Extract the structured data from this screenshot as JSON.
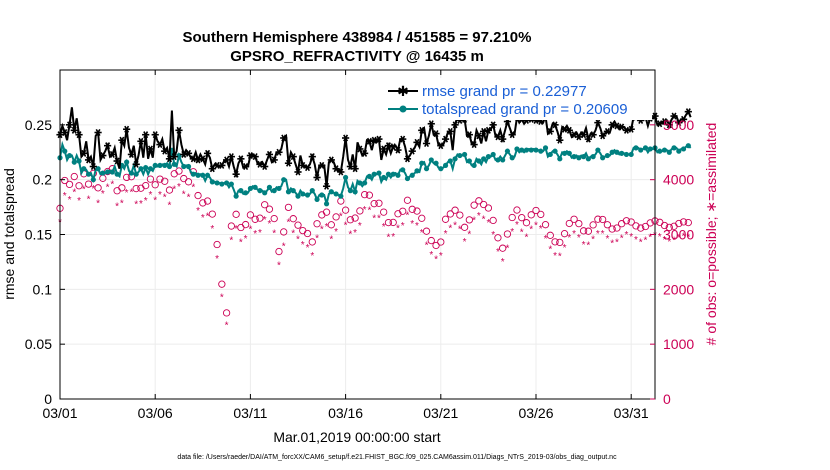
{
  "chart_data": {
    "type": "line",
    "title_line1": "Southern Hemisphere 438984 / 451585 = 97.210%",
    "title_line2": "GPSRO_REFRACTIVITY @ 16435 m",
    "ylabel_left": "rmse and totalspread",
    "ylabel_right": "# of obs: o=possible; ∗=assimilated",
    "xlabel": "Mar.01,2019 00:00:00 start",
    "footer": "data file: /Users/raeder/DAI/ATM_forcXX/CAM6_setup/f.e21.FHIST_BGC.f09_025.CAM6assim.011/Diags_NTrS_2019-03/obs_diag_output.nc",
    "x_ticks": [
      "03/01",
      "03/06",
      "03/11",
      "03/16",
      "03/21",
      "03/26",
      "03/31"
    ],
    "x_tick_days": [
      0,
      5,
      10,
      15,
      20,
      25,
      30
    ],
    "xlim": [
      0,
      31.25
    ],
    "ylim_left": [
      0,
      0.3
    ],
    "y_ticks_left": [
      "0",
      "0.05",
      "0.1",
      "0.15",
      "0.2",
      "0.25"
    ],
    "y_tick_values_left": [
      0,
      0.05,
      0.1,
      0.15,
      0.2,
      0.25
    ],
    "ylim_right": [
      0,
      6000
    ],
    "y_ticks_right": [
      "0",
      "1000",
      "2000",
      "3000",
      "4000",
      "5000"
    ],
    "y_tick_values_right": [
      0,
      1000,
      2000,
      3000,
      4000,
      5000
    ],
    "legend": [
      {
        "name": "rmse grand pr = 0.22977",
        "color": "#000000"
      },
      {
        "name": "totalspread grand pr = 0.20609",
        "color": "#008080"
      }
    ],
    "series": [
      {
        "name": "rmse",
        "color": "#000000",
        "values": [
          0.241,
          0.249,
          0.243,
          0.236,
          0.25,
          0.266,
          0.245,
          0.256,
          0.241,
          0.221,
          0.224,
          0.235,
          0.218,
          0.221,
          0.212,
          0.24,
          0.243,
          0.218,
          0.222,
          0.226,
          0.231,
          0.221,
          0.223,
          0.229,
          0.217,
          0.21,
          0.236,
          0.231,
          0.246,
          0.229,
          0.223,
          0.231,
          0.214,
          0.222,
          0.235,
          0.22,
          0.241,
          0.219,
          0.228,
          0.22,
          0.241,
          0.235,
          0.232,
          0.237,
          0.226,
          0.229,
          0.219,
          0.263,
          0.221,
          0.226,
          0.245,
          0.232,
          0.223,
          0.227,
          0.224,
          0.22,
          0.219,
          0.225,
          0.218,
          0.223,
          0.219,
          0.214,
          0.224,
          0.22,
          0.21,
          0.214,
          0.213,
          0.212,
          0.213,
          0.217,
          0.218,
          0.212,
          0.221,
          0.212,
          0.205,
          0.215,
          0.219,
          0.211,
          0.212,
          0.212,
          0.222,
          0.223,
          0.221,
          0.215,
          0.214,
          0.216,
          0.212,
          0.218,
          0.223,
          0.216,
          0.218,
          0.225,
          0.225,
          0.228,
          0.238,
          0.24,
          0.215,
          0.225,
          0.221,
          0.214,
          0.207,
          0.222,
          0.213,
          0.212,
          0.211,
          0.214,
          0.221,
          0.214,
          0.202,
          0.213,
          0.213,
          0.213,
          0.194,
          0.216,
          0.218,
          0.216,
          0.21,
          0.208,
          0.207,
          0.221,
          0.238,
          0.218,
          0.212,
          0.223,
          0.21,
          0.234,
          0.228,
          0.222,
          0.224,
          0.236,
          0.235,
          0.227,
          0.236,
          0.234,
          0.237,
          0.218,
          0.228,
          0.223,
          0.231,
          0.224,
          0.23,
          0.231,
          0.227,
          0.237,
          0.237,
          0.23,
          0.219,
          0.222,
          0.226,
          0.229,
          0.234,
          0.23,
          0.245,
          0.247,
          0.233,
          0.24,
          0.251,
          0.241,
          0.242,
          0.232,
          0.231,
          0.232,
          0.237,
          0.243,
          0.244,
          0.227,
          0.25,
          0.258,
          0.254,
          0.255,
          0.255,
          0.24,
          0.241,
          0.233,
          0.232,
          0.245,
          0.24,
          0.233,
          0.244,
          0.235,
          0.245,
          0.246,
          0.25,
          0.24,
          0.239,
          0.245,
          0.237,
          0.245,
          0.253,
          0.247,
          0.241,
          0.242,
          0.257,
          0.252,
          0.255,
          0.251,
          0.254,
          0.256,
          0.255,
          0.255,
          0.254,
          0.255,
          0.253,
          0.252,
          0.258,
          0.242,
          0.244,
          0.251,
          0.25,
          0.244,
          0.236,
          0.248,
          0.246,
          0.249,
          0.245,
          0.239,
          0.241,
          0.243,
          0.239,
          0.243,
          0.241,
          0.247,
          0.237,
          0.242,
          0.241,
          0.245,
          0.252,
          0.247,
          0.24,
          0.242,
          0.244,
          0.243,
          0.25,
          0.253,
          0.249,
          0.246,
          0.248,
          0.248,
          0.245,
          0.245,
          0.246,
          0.257,
          0.257,
          0.257,
          0.254,
          0.255,
          0.257,
          0.249,
          0.256,
          0.256,
          0.258,
          0.25,
          0.251,
          0.252,
          0.253,
          0.254,
          0.25,
          0.255,
          0.258,
          0.258,
          0.252,
          0.255,
          0.255,
          0.259,
          0.262,
          0.257
        ]
      },
      {
        "name": "totalspread",
        "color": "#008080",
        "values": [
          0.22,
          0.232,
          0.226,
          0.218,
          0.222,
          0.222,
          0.216,
          0.222,
          0.217,
          0.206,
          0.21,
          0.209,
          0.205,
          0.206,
          0.2,
          0.209,
          0.21,
          0.205,
          0.206,
          0.206,
          0.207,
          0.208,
          0.207,
          0.212,
          0.205,
          0.203,
          0.213,
          0.21,
          0.216,
          0.208,
          0.206,
          0.213,
          0.205,
          0.207,
          0.21,
          0.205,
          0.211,
          0.205,
          0.21,
          0.208,
          0.213,
          0.212,
          0.213,
          0.214,
          0.213,
          0.215,
          0.212,
          0.229,
          0.214,
          0.212,
          0.222,
          0.216,
          0.212,
          0.213,
          0.212,
          0.207,
          0.205,
          0.206,
          0.204,
          0.205,
          0.204,
          0.199,
          0.204,
          0.202,
          0.198,
          0.198,
          0.197,
          0.197,
          0.196,
          0.197,
          0.197,
          0.193,
          0.196,
          0.191,
          0.185,
          0.19,
          0.19,
          0.187,
          0.188,
          0.188,
          0.192,
          0.194,
          0.193,
          0.191,
          0.19,
          0.19,
          0.188,
          0.19,
          0.193,
          0.189,
          0.19,
          0.193,
          0.192,
          0.194,
          0.2,
          0.2,
          0.189,
          0.192,
          0.19,
          0.188,
          0.185,
          0.19,
          0.187,
          0.186,
          0.186,
          0.187,
          0.19,
          0.187,
          0.182,
          0.186,
          0.186,
          0.186,
          0.178,
          0.187,
          0.189,
          0.188,
          0.187,
          0.186,
          0.185,
          0.192,
          0.202,
          0.193,
          0.19,
          0.196,
          0.189,
          0.199,
          0.197,
          0.194,
          0.197,
          0.203,
          0.203,
          0.2,
          0.205,
          0.205,
          0.206,
          0.198,
          0.202,
          0.2,
          0.205,
          0.202,
          0.205,
          0.206,
          0.204,
          0.209,
          0.209,
          0.206,
          0.201,
          0.203,
          0.204,
          0.206,
          0.208,
          0.207,
          0.215,
          0.216,
          0.21,
          0.213,
          0.218,
          0.215,
          0.215,
          0.211,
          0.21,
          0.211,
          0.213,
          0.216,
          0.217,
          0.21,
          0.219,
          0.223,
          0.222,
          0.222,
          0.223,
          0.216,
          0.217,
          0.213,
          0.213,
          0.219,
          0.217,
          0.214,
          0.219,
          0.216,
          0.221,
          0.221,
          0.223,
          0.218,
          0.218,
          0.221,
          0.218,
          0.222,
          0.226,
          0.223,
          0.22,
          0.221,
          0.228,
          0.225,
          0.227,
          0.225,
          0.227,
          0.228,
          0.227,
          0.228,
          0.227,
          0.227,
          0.226,
          0.226,
          0.229,
          0.221,
          0.223,
          0.226,
          0.226,
          0.223,
          0.219,
          0.225,
          0.224,
          0.226,
          0.224,
          0.22,
          0.221,
          0.222,
          0.22,
          0.222,
          0.221,
          0.224,
          0.219,
          0.221,
          0.221,
          0.223,
          0.227,
          0.224,
          0.22,
          0.221,
          0.222,
          0.222,
          0.225,
          0.227,
          0.225,
          0.223,
          0.224,
          0.224,
          0.223,
          0.223,
          0.223,
          0.229,
          0.229,
          0.229,
          0.227,
          0.228,
          0.229,
          0.225,
          0.228,
          0.228,
          0.229,
          0.225,
          0.226,
          0.226,
          0.227,
          0.227,
          0.225,
          0.228,
          0.229,
          0.229,
          0.226,
          0.228,
          0.228,
          0.23,
          0.231,
          0.229
        ]
      },
      {
        "name": "possible",
        "color": "#cc0055",
        "values": [
          3478,
          3310,
          3985,
          3872,
          3914,
          3950,
          4057,
          3750,
          3889,
          3994,
          4107,
          4068,
          3919,
          3990,
          4115,
          4074,
          3851,
          4013,
          4025,
          3935,
          4148,
          4040,
          4200,
          3882,
          3798,
          3958,
          3851,
          4000,
          4042,
          3946,
          4054,
          4059,
          3837,
          3913,
          3844,
          3915,
          3892,
          3960,
          4010,
          4073,
          3907,
          4062,
          4010,
          3952,
          3971,
          3824,
          3810,
          4081,
          4107,
          4096,
          4157,
          4085,
          4020,
          4113,
          3961,
          4098,
          4145,
          3954,
          3710,
          3689,
          3576,
          3559,
          3610,
          3447,
          3372,
          3175,
          2817,
          2590,
          2094,
          1859,
          1570,
          3077,
          3154,
          3280,
          3368,
          3287,
          3127,
          3061,
          3181,
          3245,
          3357,
          3193,
          3277,
          3360,
          3298,
          3421,
          3543,
          3590,
          3462,
          3395,
          3290,
          3239,
          2689,
          2969,
          3047,
          3203,
          3495,
          3474,
          3288,
          3013,
          3170,
          3265,
          3071,
          2975,
          3018,
          2978,
          2864,
          3160,
          3196,
          3287,
          3357,
          3400,
          3407,
          3313,
          3177,
          3241,
          3321,
          3465,
          3610,
          3597,
          3444,
          3326,
          3269,
          3222,
          3300,
          3398,
          3430,
          3581,
          3727,
          3728,
          3717,
          3685,
          3562,
          3543,
          3570,
          3451,
          3408,
          3304,
          3217,
          3154,
          3220,
          3390,
          3378,
          3448,
          3424,
          3541,
          3624,
          3552,
          3459,
          3448,
          3427,
          3376,
          3296,
          3193,
          3060,
          2969,
          2889,
          2826,
          2800,
          2756,
          2863,
          3051,
          3277,
          3345,
          3375,
          3346,
          3443,
          3428,
          3354,
          3213,
          3131,
          3169,
          3267,
          3398,
          3535,
          3610,
          3614,
          3591,
          3547,
          3519,
          3483,
          3395,
          3257,
          3106,
          2940,
          2795,
          2750,
          2844,
          3009,
          3202,
          3310,
          3430,
          3446,
          3392,
          3307,
          3231,
          3215,
          3266,
          3359,
          3424,
          3438,
          3420,
          3366,
          3281,
          3179,
          3074,
          2985,
          2912,
          2866,
          2835,
          2856,
          2925,
          3015,
          3114,
          3201,
          3262,
          3278,
          3255,
          3198,
          3125,
          3067,
          3043,
          3060,
          3110,
          3175,
          3237,
          3279,
          3292,
          3274,
          3231,
          3178,
          3130,
          3100,
          3097,
          3118,
          3156,
          3197,
          3232,
          3251,
          3250,
          3228,
          3194,
          3157,
          3129,
          3117,
          3124,
          3146,
          3178,
          3211,
          3236,
          3247,
          3242,
          3222,
          3193,
          3164,
          3140,
          3130,
          3134,
          3150,
          3175,
          3200,
          3220,
          3230,
          3229,
          3217,
          0
        ]
      },
      {
        "name": "assimilated",
        "color": "#cc0055",
        "values": [
          3400,
          3260,
          3880,
          3770,
          3810,
          3850,
          3950,
          3660,
          3790,
          3890,
          4000,
          3960,
          3820,
          3880,
          4010,
          3970,
          3750,
          3900,
          3920,
          3830,
          4040,
          3930,
          4090,
          3780,
          3690,
          3850,
          3750,
          3890,
          3940,
          3840,
          3950,
          3950,
          3730,
          3810,
          3740,
          3810,
          3790,
          3850,
          3900,
          3960,
          3800,
          3950,
          3900,
          3850,
          3860,
          3720,
          3710,
          3970,
          4000,
          3990,
          4050,
          3980,
          3910,
          4000,
          3860,
          3990,
          4040,
          3850,
          3610,
          3590,
          3480,
          3460,
          3510,
          3350,
          3280,
          3090,
          2740,
          2520,
          2030,
          1800,
          1520,
          2990,
          3070,
          3190,
          3280,
          3200,
          3040,
          2980,
          3100,
          3160,
          3270,
          3110,
          3190,
          3270,
          3210,
          3330,
          3450,
          3490,
          3370,
          3300,
          3200,
          3150,
          2620,
          2890,
          2960,
          3120,
          3400,
          3380,
          3200,
          2930,
          3090,
          3180,
          2990,
          2900,
          2940,
          2900,
          2790,
          3080,
          3110,
          3200,
          3270,
          3310,
          3320,
          3230,
          3090,
          3160,
          3230,
          3370,
          3510,
          3500,
          3350,
          3240,
          3180,
          3140,
          3210,
          3310,
          3340,
          3490,
          3630,
          3630,
          3620,
          3590,
          3470,
          3450,
          3470,
          3360,
          3320,
          3220,
          3130,
          3070,
          3140,
          3300,
          3290,
          3360,
          3340,
          3450,
          3530,
          3460,
          3370,
          3360,
          3340,
          3290,
          3210,
          3110,
          2980,
          2890,
          2810,
          2750,
          2730,
          2680,
          2790,
          2970,
          3190,
          3260,
          3290,
          3260,
          3350,
          3340,
          3270,
          3130,
          3050,
          3090,
          3180,
          3310,
          3440,
          3520,
          3520,
          3500,
          3460,
          3430,
          3390,
          3310,
          3170,
          3030,
          2860,
          2720,
          2680,
          2770,
          2930,
          3120,
          3230,
          3340,
          3360,
          3300,
          3220,
          3150,
          3130,
          3180,
          3270,
          3340,
          3350,
          3330,
          3280,
          3200,
          3100,
          2990,
          2910,
          2840,
          2790,
          2760,
          2780,
          2850,
          2940,
          3030,
          3120,
          3180,
          3190,
          3170,
          3120,
          3040,
          2990,
          2960,
          2980,
          3030,
          3090,
          3150,
          3190,
          3210,
          3190,
          3150,
          3100,
          3050,
          3020,
          3020,
          3040,
          3070,
          3110,
          3150,
          3170,
          3170,
          3140,
          3110,
          3080,
          3050,
          3040,
          3040,
          3070,
          3100,
          3130,
          3150,
          3160,
          3160,
          3140,
          3110,
          3080,
          3060,
          3050,
          3060,
          3070,
          3090,
          3120,
          3140,
          3150,
          3150,
          3130,
          0
        ]
      }
    ],
    "x_step_days": 0.125,
    "grid": true
  }
}
